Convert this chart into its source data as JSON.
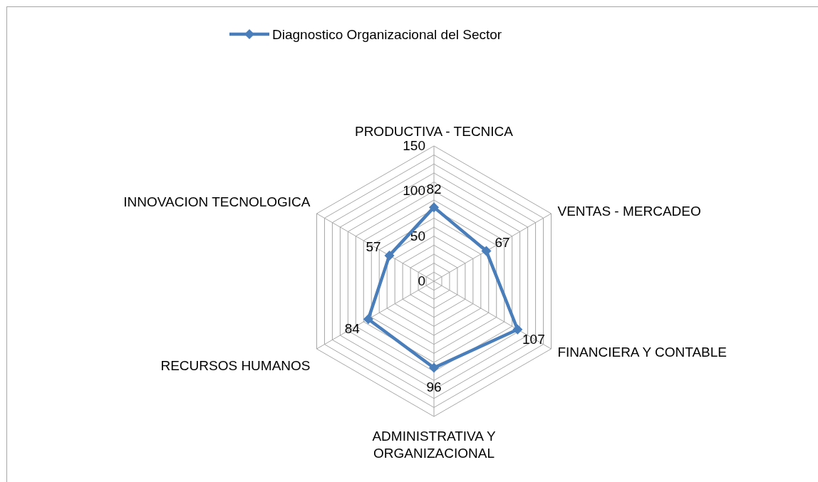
{
  "chart_data": {
    "type": "radar",
    "categories": [
      "PRODUCTIVA - TECNICA",
      "VENTAS - MERCADEO",
      "FINANCIERA Y CONTABLE",
      "ADMINISTRATIVA Y ORGANIZACIONAL",
      "RECURSOS HUMANOS",
      "INNOVACION TECNOLOGICA"
    ],
    "series": [
      {
        "name": "Diagnostico Organizacional del Sector",
        "color": "#4a7ebb",
        "values": [
          82,
          67,
          107,
          96,
          84,
          57
        ]
      }
    ],
    "ylim": [
      0,
      150
    ],
    "yticks": [
      0,
      50,
      100,
      150
    ],
    "grid": true,
    "legend": "top",
    "marker": "diamond",
    "line_style": "solid",
    "data_labels": true
  }
}
